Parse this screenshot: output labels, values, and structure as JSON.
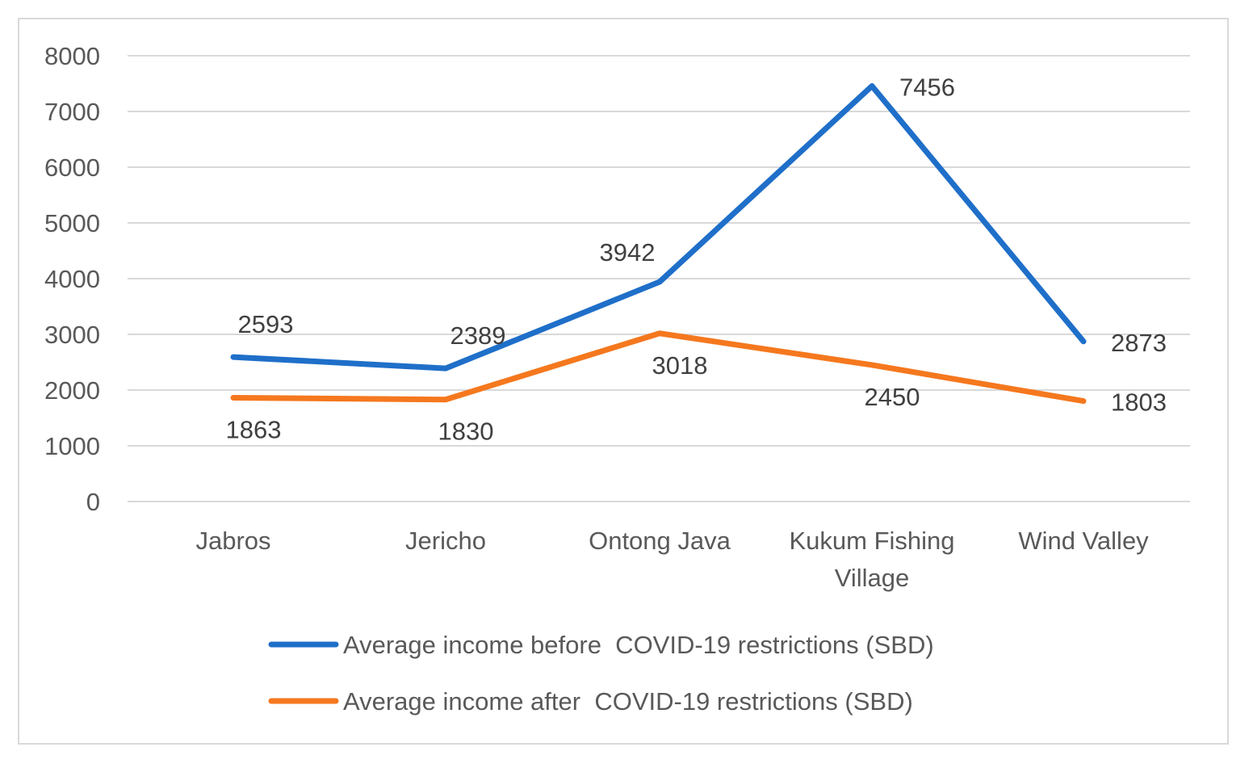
{
  "chart_data": {
    "type": "line",
    "title": "",
    "xlabel": "",
    "ylabel": "",
    "categories": [
      [
        "Jabros"
      ],
      [
        "Jericho"
      ],
      [
        "Ontong Java"
      ],
      [
        "Kukum Fishing",
        "Village"
      ],
      [
        "Wind Valley"
      ]
    ],
    "ylim": [
      0,
      8000
    ],
    "yticks": [
      0,
      1000,
      2000,
      3000,
      4000,
      5000,
      6000,
      7000,
      8000
    ],
    "grid": true,
    "legend_position": "bottom",
    "series": [
      {
        "name": "Average income before  COVID-19 restrictions (SBD)",
        "color": "#1f6fc9",
        "values": [
          2593,
          2389,
          3942,
          7456,
          2873
        ],
        "label_placement": [
          "above",
          "above",
          "above-left",
          "right",
          "right"
        ]
      },
      {
        "name": "Average income after  COVID-19 restrictions (SBD)",
        "color": "#f5781e",
        "values": [
          1863,
          1830,
          3018,
          2450,
          1803
        ],
        "label_placement": [
          "below",
          "below",
          "below",
          "below",
          "right"
        ]
      }
    ]
  }
}
